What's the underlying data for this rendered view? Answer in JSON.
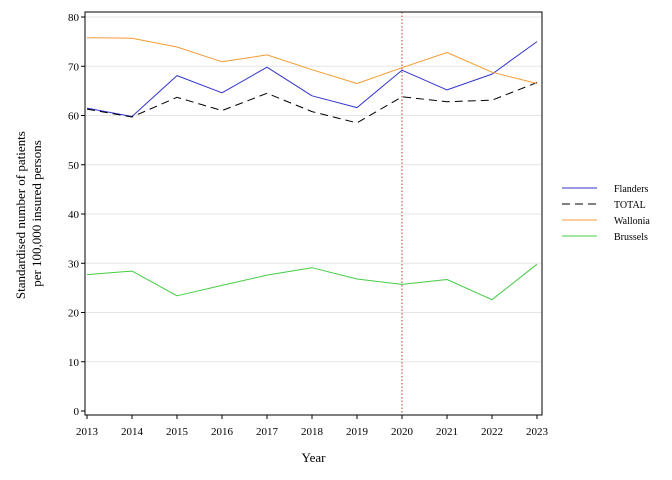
{
  "chart_data": {
    "type": "line",
    "title": "",
    "xlabel": "Year",
    "ylabel_lines": [
      "Standardised number of patients",
      "per 100,000 insured persons"
    ],
    "x": [
      2013,
      2014,
      2015,
      2016,
      2017,
      2018,
      2019,
      2020,
      2021,
      2022,
      2023
    ],
    "xlim": [
      2013,
      2023
    ],
    "ylim": [
      0,
      80
    ],
    "yticks": [
      0,
      10,
      20,
      30,
      40,
      50,
      60,
      70,
      80
    ],
    "grid": "horizontal",
    "reference_line_x": 2020,
    "reference_line_color": "#c0392b",
    "legend_position": "right",
    "series": [
      {
        "name": "Flanders",
        "color": "#3333cc",
        "dash": "solid",
        "values": [
          61.5,
          59.8,
          68.1,
          64.6,
          69.8,
          64.0,
          61.6,
          69.2,
          65.2,
          68.4,
          75.0
        ]
      },
      {
        "name": "TOTAL",
        "color": "#000000",
        "dash": "dashed",
        "values": [
          61.3,
          59.7,
          63.7,
          61.0,
          64.5,
          60.8,
          58.5,
          63.8,
          62.8,
          63.1,
          66.7
        ]
      },
      {
        "name": "Wallonia",
        "color": "#f39c34",
        "dash": "solid",
        "values": [
          75.8,
          75.7,
          73.9,
          70.9,
          72.3,
          69.3,
          66.5,
          69.7,
          72.8,
          68.8,
          66.5
        ]
      },
      {
        "name": "Brussels",
        "color": "#44cc44",
        "dash": "solid",
        "values": [
          27.7,
          28.4,
          23.4,
          25.5,
          27.6,
          29.1,
          26.8,
          25.7,
          26.7,
          22.6,
          29.8
        ]
      }
    ]
  }
}
